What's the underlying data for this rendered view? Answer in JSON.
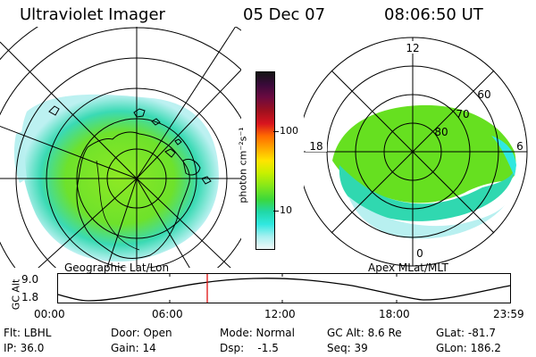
{
  "header": {
    "instrument": "Ultraviolet Imager",
    "date": "05 Dec 07",
    "time": "08:06:50 UT"
  },
  "colorbar": {
    "unit_label": "photon cm⁻²s⁻¹",
    "ticks": [
      "100",
      "10"
    ],
    "colors": [
      "#141414",
      "#3a0a3a",
      "#6a0a40",
      "#a0101e",
      "#d8141e",
      "#ff6a00",
      "#ffa800",
      "#ffe400",
      "#c8f000",
      "#88e818",
      "#3cd83c",
      "#20d8a8",
      "#30e8e0",
      "#a8f0f0",
      "#f0f8f8"
    ]
  },
  "left_panel": {
    "caption": "Geographic Lat/Lon"
  },
  "right_panel": {
    "caption": "Apex MLat/MLT",
    "mlt_labels": {
      "top": "12",
      "left": "18",
      "right": "6",
      "bottom": "0"
    },
    "lat_labels": [
      "60",
      "70",
      "80"
    ]
  },
  "altitude_strip": {
    "ylabel": "GC Alt",
    "y_ticks": [
      "9.0",
      "1.8"
    ],
    "x_ticks": [
      "00:00",
      "06:00",
      "12:00",
      "18:00",
      "23:59"
    ],
    "marker_color": "#e01010"
  },
  "footer": {
    "flt": "Flt: LBHL",
    "ip": "IP: 36.0",
    "door": "Door: Open",
    "gain": "Gain: 14",
    "mode": "Mode: Normal",
    "dsp": "Dsp:    -1.5",
    "gc_alt": "GC Alt: 8.6 Re",
    "seq": "Seq: 39",
    "glat": "GLat: -81.7",
    "glon": "GLon: 186.2"
  }
}
